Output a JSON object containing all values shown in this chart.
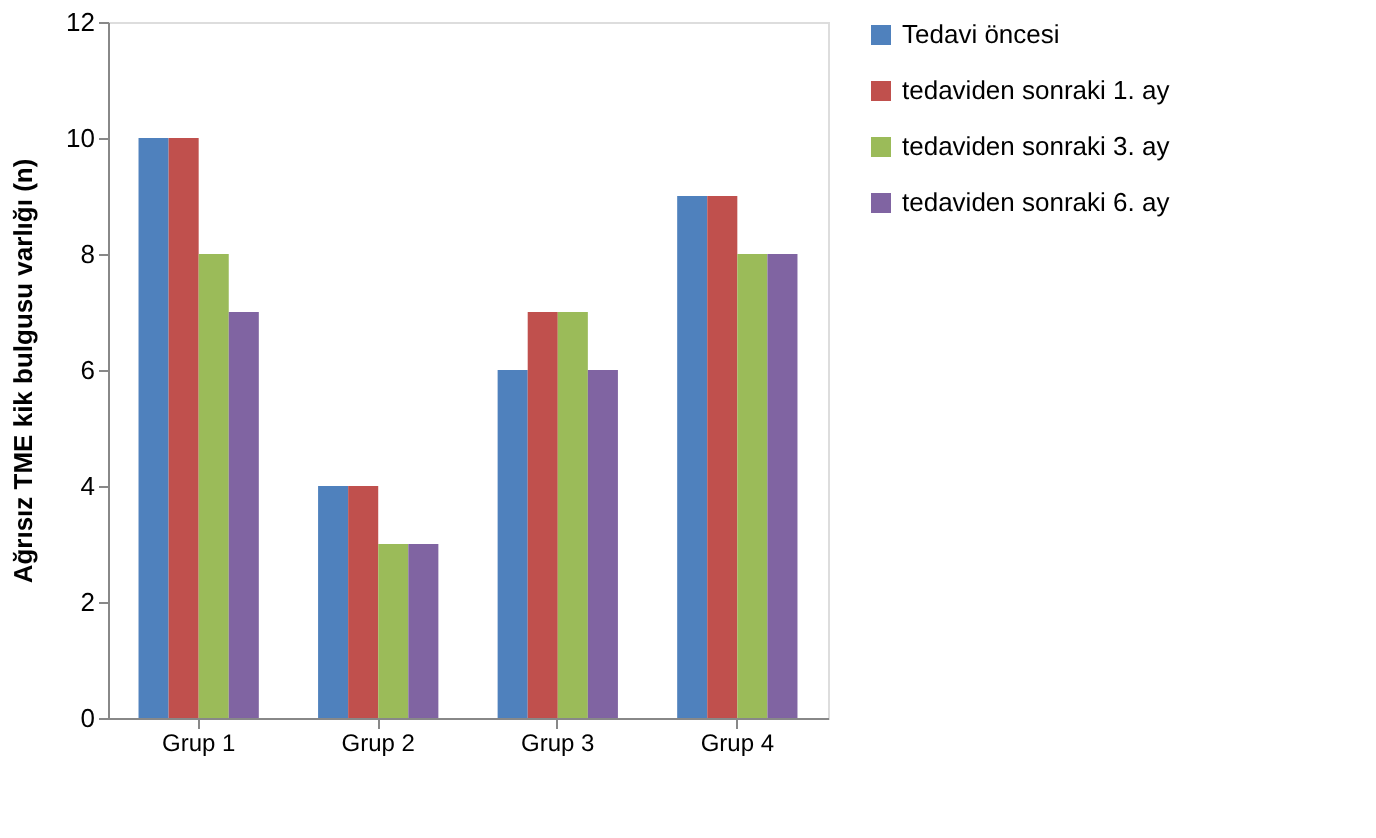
{
  "chart_data": {
    "type": "bar",
    "ylabel": "Ağrısız TME kik bulgusu varlığı (n)",
    "categories": [
      "Grup 1",
      "Grup 2",
      "Grup 3",
      "Grup 4"
    ],
    "series": [
      {
        "name": "Tedavi öncesi",
        "color": "#4f81bd",
        "values": [
          10,
          4,
          6,
          9
        ]
      },
      {
        "name": "tedaviden sonraki 1. ay",
        "color": "#c0504d",
        "values": [
          10,
          4,
          7,
          9
        ]
      },
      {
        "name": "tedaviden sonraki 3. ay",
        "color": "#9bbb59",
        "values": [
          8,
          3,
          7,
          8
        ]
      },
      {
        "name": "tedaviden sonraki 6. ay",
        "color": "#8064a2",
        "values": [
          7,
          3,
          6,
          8
        ]
      }
    ],
    "ylim": [
      0,
      12
    ],
    "yticks": [
      0,
      2,
      4,
      6,
      8,
      10,
      12
    ],
    "grid": false,
    "legend": "right"
  }
}
